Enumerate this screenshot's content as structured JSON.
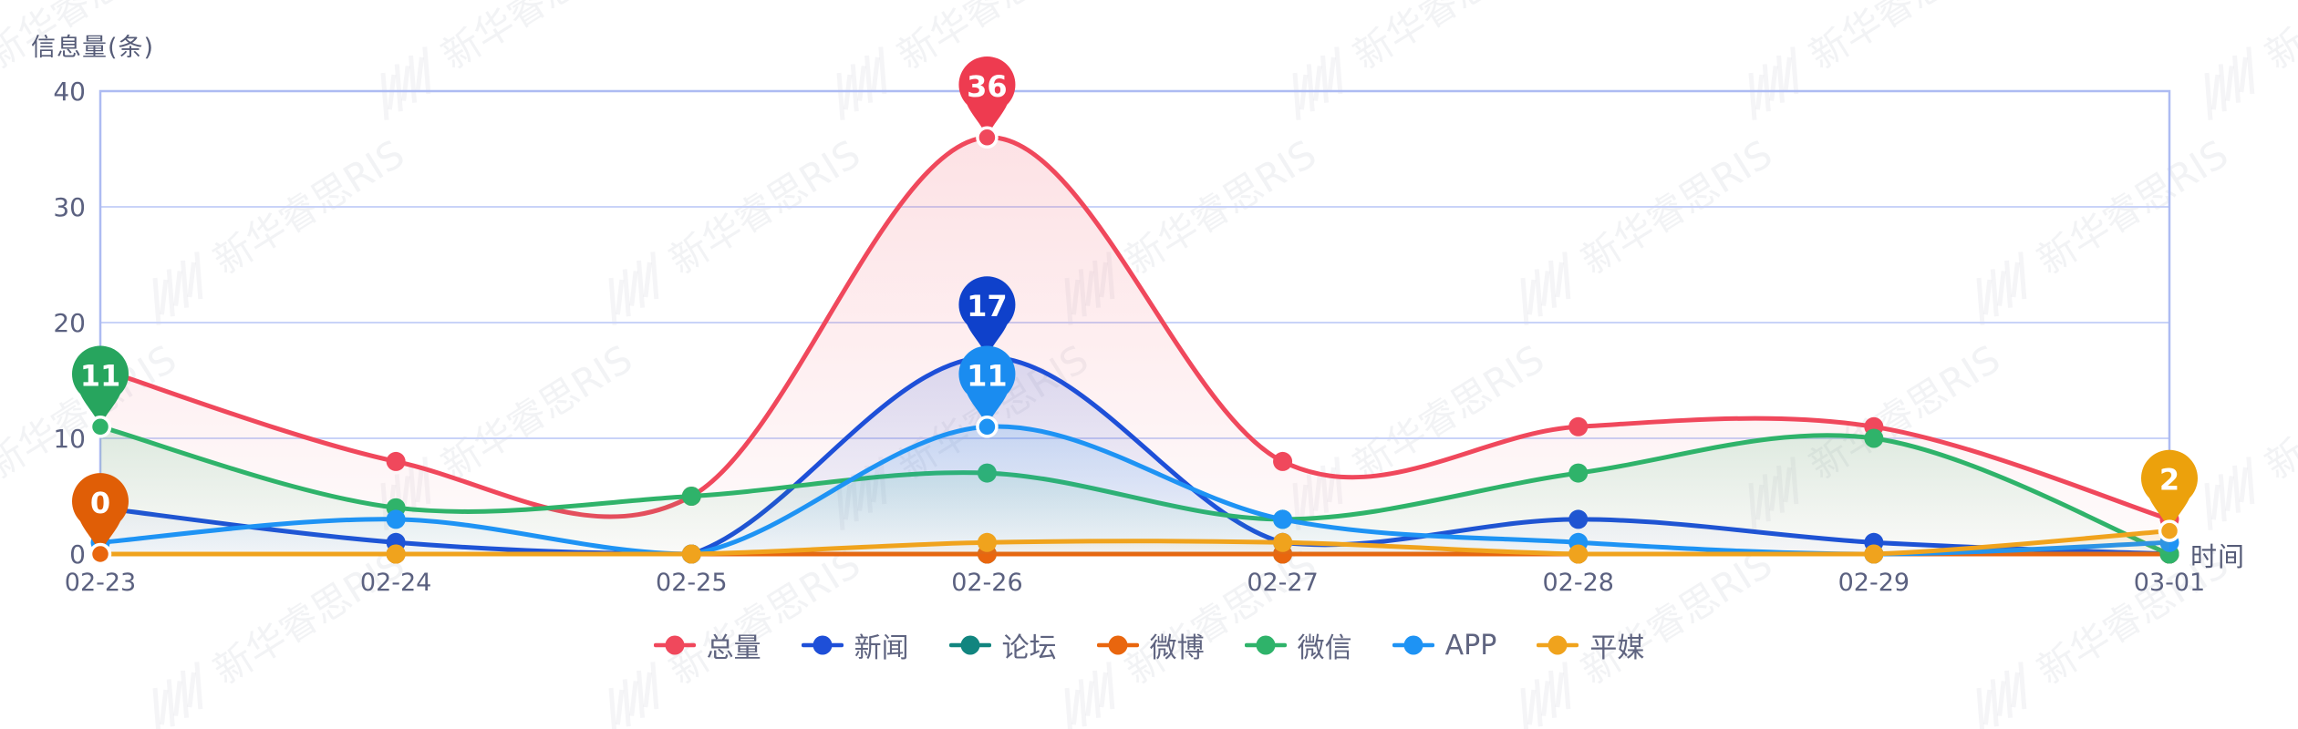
{
  "watermark": "新华睿思RIS",
  "chart_data": {
    "type": "line",
    "title": "",
    "ylabel": "信息量(条)",
    "xlabel": "时间",
    "categories": [
      "02-23",
      "02-24",
      "02-25",
      "02-26",
      "02-27",
      "02-28",
      "02-29",
      "03-01"
    ],
    "ylim": [
      0,
      40
    ],
    "yticks": [
      0,
      10,
      20,
      30,
      40
    ],
    "grid": true,
    "smooth": true,
    "legend_position": "bottom",
    "axis_text_color": "#5b6180",
    "grid_color": "#c9d3f8",
    "border_color": "#adbbf2",
    "series": [
      {
        "name": "总量",
        "color": "#f0485c",
        "balloon": "#ee3b50",
        "values": [
          16,
          8,
          5,
          36,
          8,
          11,
          11,
          3
        ]
      },
      {
        "name": "新闻",
        "color": "#1e4fd8",
        "balloon": "#0f41cb",
        "values": [
          4,
          1,
          0,
          17,
          1,
          3,
          1,
          0
        ]
      },
      {
        "name": "论坛",
        "color": "#11857f",
        "balloon": "#11857f",
        "values": [
          0,
          0,
          0,
          0,
          0,
          0,
          0,
          0
        ]
      },
      {
        "name": "微博",
        "color": "#e9660e",
        "balloon": "#e05e06",
        "values": [
          0,
          0,
          0,
          0,
          0,
          0,
          0,
          0
        ]
      },
      {
        "name": "微信",
        "color": "#2fb36a",
        "balloon": "#27a55e",
        "values": [
          11,
          4,
          5,
          7,
          3,
          7,
          10,
          0
        ]
      },
      {
        "name": "APP",
        "color": "#1e93f4",
        "balloon": "#1a8cf0",
        "values": [
          1,
          3,
          0,
          11,
          3,
          1,
          0,
          1
        ]
      },
      {
        "name": "平媒",
        "color": "#f0a31d",
        "balloon": "#eca10c",
        "values": [
          0,
          0,
          0,
          1,
          1,
          0,
          0,
          2
        ]
      }
    ],
    "callouts": [
      {
        "series": "微信",
        "index": 0,
        "value": 11,
        "label": "11"
      },
      {
        "series": "微博",
        "index": 0,
        "value": 0,
        "label": "0"
      },
      {
        "series": "新闻",
        "index": 3,
        "value": 17,
        "label": "17"
      },
      {
        "series": "APP",
        "index": 3,
        "value": 11,
        "label": "11"
      },
      {
        "series": "总量",
        "index": 3,
        "value": 36,
        "label": "36"
      },
      {
        "series": "平媒",
        "index": 7,
        "value": 2,
        "label": "2"
      }
    ]
  }
}
